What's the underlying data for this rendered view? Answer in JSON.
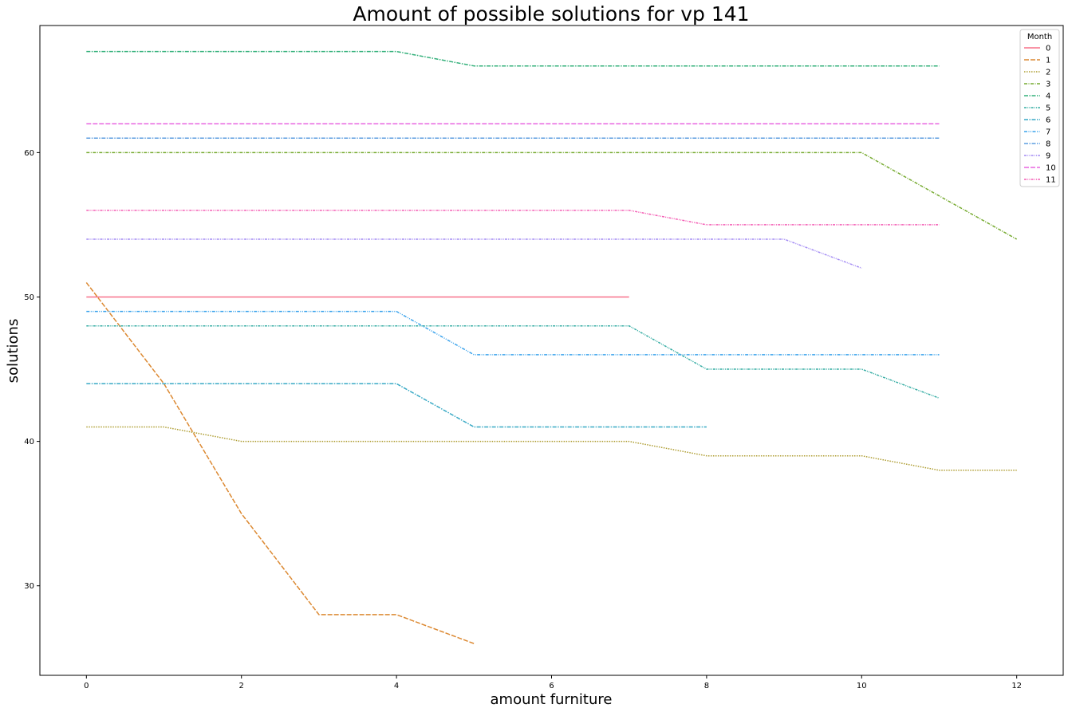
{
  "chart_data": {
    "type": "line",
    "title": "Amount of possible solutions for vp 141",
    "xlabel": "amount furniture",
    "ylabel": "solutions",
    "xlim": [
      -0.6,
      12.6
    ],
    "ylim": [
      23.8,
      68.8
    ],
    "xticks": [
      "0",
      "2",
      "4",
      "6",
      "8",
      "10",
      "12"
    ],
    "yticks": [
      "30",
      "40",
      "50",
      "60"
    ],
    "grid": false,
    "legend": {
      "title": "Month",
      "placement": "top-right"
    },
    "series": [
      {
        "name": "0",
        "color": "#f77189",
        "dash": "solid",
        "x": [
          0,
          1,
          2,
          3,
          4,
          5,
          6,
          7
        ],
        "y": [
          50,
          50,
          50,
          50,
          50,
          50,
          50,
          50
        ]
      },
      {
        "name": "1",
        "color": "#dc8932",
        "dash": "dashed",
        "x": [
          0,
          1,
          2,
          3,
          4,
          5
        ],
        "y": [
          51,
          44,
          35,
          28,
          28,
          26
        ]
      },
      {
        "name": "2",
        "color": "#ae9d31",
        "dash": "dotted",
        "x": [
          0,
          1,
          2,
          3,
          4,
          5,
          6,
          7,
          8,
          9,
          10,
          11,
          12
        ],
        "y": [
          41,
          41,
          40,
          40,
          40,
          40,
          40,
          40,
          39,
          39,
          39,
          38,
          38
        ]
      },
      {
        "name": "3",
        "color": "#77ab31",
        "dash": "dashdot",
        "x": [
          0,
          1,
          2,
          3,
          4,
          5,
          6,
          7,
          8,
          9,
          10,
          11,
          12
        ],
        "y": [
          60,
          60,
          60,
          60,
          60,
          60,
          60,
          60,
          60,
          60,
          60,
          57,
          54
        ]
      },
      {
        "name": "4",
        "color": "#33b07a",
        "dash": "longdashdot",
        "x": [
          0,
          1,
          2,
          3,
          4,
          5,
          6,
          7,
          8,
          9,
          10,
          11
        ],
        "y": [
          67,
          67,
          67,
          67,
          67,
          66,
          66,
          66,
          66,
          66,
          66,
          66
        ]
      },
      {
        "name": "5",
        "color": "#36ada4",
        "dash": "dashdotdot",
        "x": [
          0,
          1,
          2,
          3,
          4,
          5,
          6,
          7,
          8,
          9,
          10,
          11
        ],
        "y": [
          48,
          48,
          48,
          48,
          48,
          48,
          48,
          48,
          45,
          45,
          45,
          43
        ]
      },
      {
        "name": "6",
        "color": "#38a9c5",
        "dash": "longdashdot",
        "x": [
          0,
          1,
          2,
          3,
          4,
          5,
          6,
          7,
          8
        ],
        "y": [
          44,
          44,
          44,
          44,
          44,
          41,
          41,
          41,
          41
        ]
      },
      {
        "name": "7",
        "color": "#3ba3ec",
        "dash": "dashdot2",
        "x": [
          0,
          1,
          2,
          3,
          4,
          5,
          6,
          7,
          8,
          9,
          10,
          11
        ],
        "y": [
          49,
          49,
          49,
          49,
          49,
          46,
          46,
          46,
          46,
          46,
          46,
          46
        ]
      },
      {
        "name": "8",
        "color": "#5d9ee0",
        "dash": "longdashdot",
        "x": [
          0,
          1,
          2,
          3,
          4,
          5,
          6,
          7,
          8,
          9,
          10,
          11
        ],
        "y": [
          61,
          61,
          61,
          61,
          61,
          61,
          61,
          61,
          61,
          61,
          61,
          61
        ]
      },
      {
        "name": "9",
        "color": "#a48cf4",
        "dash": "dashdotdot",
        "x": [
          0,
          1,
          2,
          3,
          4,
          5,
          6,
          7,
          8,
          9,
          10
        ],
        "y": [
          54,
          54,
          54,
          54,
          54,
          54,
          54,
          54,
          54,
          54,
          52
        ]
      },
      {
        "name": "10",
        "color": "#e866e1",
        "dash": "dashed",
        "x": [
          0,
          1,
          2,
          3,
          4,
          5,
          6,
          7,
          8,
          9,
          10,
          11
        ],
        "y": [
          62,
          62,
          62,
          62,
          62,
          62,
          62,
          62,
          62,
          62,
          62,
          62
        ]
      },
      {
        "name": "11",
        "color": "#f45fb5",
        "dash": "dashdotdot",
        "x": [
          0,
          1,
          2,
          3,
          4,
          5,
          6,
          7,
          8,
          9,
          10,
          11
        ],
        "y": [
          56,
          56,
          56,
          56,
          56,
          56,
          56,
          56,
          55,
          55,
          55,
          55
        ]
      }
    ]
  }
}
